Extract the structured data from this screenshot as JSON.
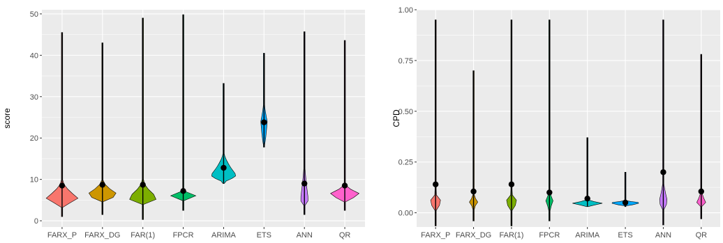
{
  "chart_data": [
    {
      "type": "violin",
      "categories": [
        "FARX_P",
        "FARX_DG",
        "FAR(1)",
        "FPCR",
        "ARIMA",
        "ETS",
        "ANN",
        "QR"
      ],
      "colors": [
        "#F8766D",
        "#CD9600",
        "#7CAE00",
        "#00BE67",
        "#00BFC4",
        "#00A9FF",
        "#C77CFF",
        "#FF61CC"
      ],
      "ylabel": "score",
      "ylim": [
        -1.5,
        51
      ],
      "yticks": [
        0,
        10,
        20,
        30,
        40,
        50
      ],
      "ytick_labels": [
        "0",
        "10",
        "20",
        "30",
        "40",
        "50"
      ],
      "grid": true,
      "series": [
        {
          "min": 1,
          "max": 45.5,
          "mean": 8.5,
          "mode": 5.5,
          "lo": 3.8,
          "hi": 10,
          "halfwidth": 0.4
        },
        {
          "min": 1.5,
          "max": 43,
          "mean": 8.7,
          "mode": 6.3,
          "lo": 5,
          "hi": 10,
          "halfwidth": 0.4
        },
        {
          "min": 0.3,
          "max": 49,
          "mean": 8.7,
          "mode": 5.5,
          "lo": 4,
          "hi": 10,
          "halfwidth": 0.38
        },
        {
          "min": 2.5,
          "max": 49.8,
          "mean": 7.2,
          "mode": 5.8,
          "lo": 5.2,
          "hi": 7,
          "halfwidth": 0.45
        },
        {
          "min": 9,
          "max": 33.2,
          "mean": 12.8,
          "mode": 11,
          "lo": 9.5,
          "hi": 17,
          "halfwidth": 0.32
        },
        {
          "min": 17.8,
          "max": 40.5,
          "mean": 23.8,
          "mode": 24,
          "lo": 18,
          "hi": 30,
          "halfwidth": 0.08
        },
        {
          "min": 1.5,
          "max": 45.7,
          "mean": 9,
          "mode": 5,
          "lo": 4,
          "hi": 16,
          "halfwidth": 0.1
        },
        {
          "min": 2.5,
          "max": 43.6,
          "mean": 8.5,
          "mode": 6.5,
          "lo": 5,
          "hi": 9,
          "halfwidth": 0.38
        }
      ]
    },
    {
      "type": "violin",
      "categories": [
        "FARX_P",
        "FARX_DG",
        "FAR(1)",
        "FPCR",
        "ARIMA",
        "ETS",
        "ANN",
        "QR"
      ],
      "colors": [
        "#F8766D",
        "#CD9600",
        "#7CAE00",
        "#00BE67",
        "#00BFC4",
        "#00A9FF",
        "#C77CFF",
        "#FF61CC"
      ],
      "ylabel": "CPD",
      "ylim": [
        -0.07,
        1.0
      ],
      "yticks": [
        0,
        0.25,
        0.5,
        0.75,
        1.0
      ],
      "ytick_labels": [
        "0.00",
        "0.25",
        "0.50",
        "0.75",
        "1.00"
      ],
      "grid": true,
      "series": [
        {
          "min": -0.065,
          "max": 0.95,
          "mean": 0.14,
          "mode": 0.05,
          "lo": 0.03,
          "hi": 0.1,
          "halfwidth": 0.2
        },
        {
          "min": -0.04,
          "max": 0.7,
          "mean": 0.105,
          "mode": 0.05,
          "lo": 0.03,
          "hi": 0.1,
          "halfwidth": 0.12
        },
        {
          "min": -0.065,
          "max": 0.95,
          "mean": 0.14,
          "mode": 0.05,
          "lo": 0.03,
          "hi": 0.1,
          "halfwidth": 0.2
        },
        {
          "min": -0.04,
          "max": 0.95,
          "mean": 0.1,
          "mode": 0.05,
          "lo": 0.03,
          "hi": 0.12,
          "halfwidth": 0.12
        },
        {
          "min": 0.03,
          "max": 0.37,
          "mean": 0.07,
          "mode": 0.05,
          "lo": 0.035,
          "hi": 0.062,
          "halfwidth": 0.45
        },
        {
          "min": 0.03,
          "max": 0.2,
          "mean": 0.05,
          "mode": 0.05,
          "lo": 0.035,
          "hi": 0.062,
          "halfwidth": 0.4
        },
        {
          "min": -0.06,
          "max": 0.95,
          "mean": 0.2,
          "mode": 0.05,
          "lo": 0.03,
          "hi": 0.18,
          "halfwidth": 0.12
        },
        {
          "min": -0.03,
          "max": 0.78,
          "mean": 0.105,
          "mode": 0.05,
          "lo": 0.03,
          "hi": 0.12,
          "halfwidth": 0.12
        }
      ]
    }
  ]
}
